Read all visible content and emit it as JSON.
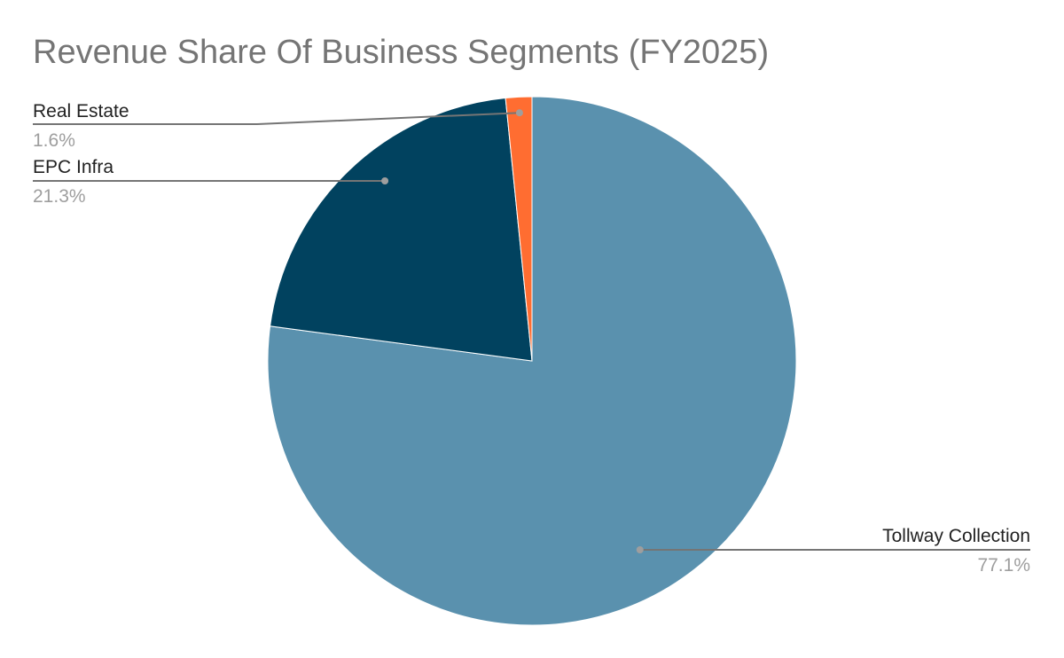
{
  "chart_data": {
    "type": "pie",
    "title": "Revenue Share Of Business Segments (FY2025)",
    "slices": [
      {
        "name": "Tollway Collection",
        "value": 77.1,
        "label": "77.1%",
        "color": "#5a91ae"
      },
      {
        "name": "EPC Infra",
        "value": 21.3,
        "label": "21.3%",
        "color": "#01425f"
      },
      {
        "name": "Real Estate",
        "value": 1.6,
        "label": "1.6%",
        "color": "#ff6d31"
      }
    ],
    "legend": "none",
    "labels_position": "outside"
  }
}
